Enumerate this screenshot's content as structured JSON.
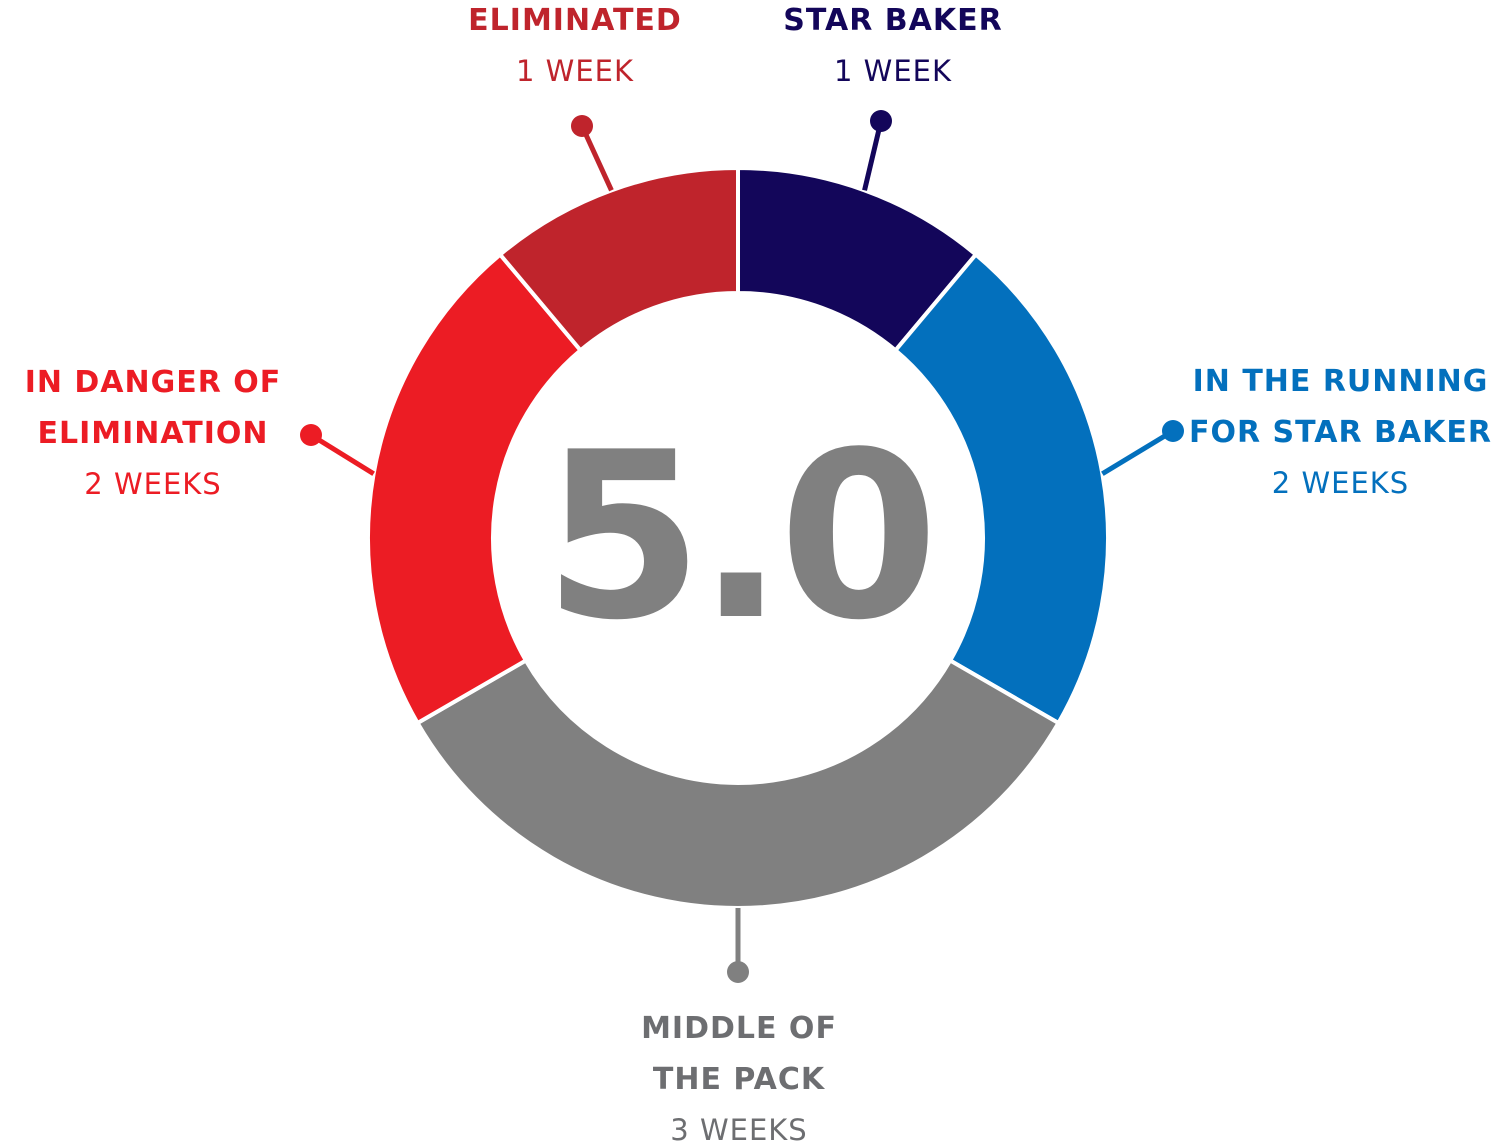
{
  "chart_data": {
    "type": "pie",
    "donut": true,
    "center_value": "5.0",
    "start_angle": "12 o'clock",
    "direction": "clockwise",
    "segments": [
      {
        "label_lines": [
          "STAR BAKER"
        ],
        "value_text": "1 WEEK",
        "value": 1,
        "color": "#13065a"
      },
      {
        "label_lines": [
          "IN THE RUNNING",
          "FOR STAR BAKER"
        ],
        "value_text": "2 WEEKS",
        "value": 2,
        "color": "#0370bd"
      },
      {
        "label_lines": [
          "MIDDLE OF",
          "THE PACK"
        ],
        "value_text": "3 WEEKS",
        "value": 3,
        "color": "#808080"
      },
      {
        "label_lines": [
          "IN DANGER OF",
          "ELIMINATION"
        ],
        "value_text": "2 WEEKS",
        "value": 2,
        "color": "#ec1c24"
      },
      {
        "label_lines": [
          "ELIMINATED"
        ],
        "value_text": "1 WEEK",
        "value": 1,
        "color": "#bf242c"
      }
    ]
  }
}
